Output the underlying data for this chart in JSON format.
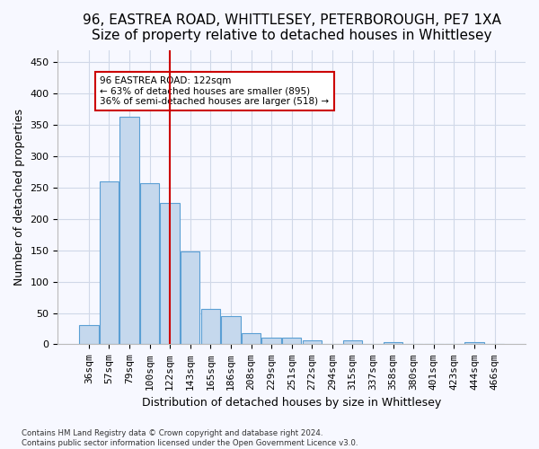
{
  "title": "96, EASTREA ROAD, WHITTLESEY, PETERBOROUGH, PE7 1XA",
  "subtitle": "Size of property relative to detached houses in Whittlesey",
  "xlabel": "Distribution of detached houses by size in Whittlesey",
  "ylabel": "Number of detached properties",
  "bar_color": "#c5d8ed",
  "bar_edge_color": "#5a9fd4",
  "grid_color": "#d0d8e8",
  "bins": [
    "36sqm",
    "57sqm",
    "79sqm",
    "100sqm",
    "122sqm",
    "143sqm",
    "165sqm",
    "186sqm",
    "208sqm",
    "229sqm",
    "251sqm",
    "272sqm",
    "294sqm",
    "315sqm",
    "337sqm",
    "358sqm",
    "380sqm",
    "401sqm",
    "423sqm",
    "444sqm",
    "466sqm"
  ],
  "values": [
    31,
    260,
    363,
    257,
    225,
    148,
    57,
    45,
    18,
    11,
    11,
    7,
    0,
    6,
    0,
    4,
    0,
    0,
    0,
    4,
    0
  ],
  "ylim": [
    0,
    470
  ],
  "yticks": [
    0,
    50,
    100,
    150,
    200,
    250,
    300,
    350,
    400,
    450
  ],
  "property_line_x": 4,
  "annotation_text": "96 EASTREA ROAD: 122sqm\n← 63% of detached houses are smaller (895)\n36% of semi-detached houses are larger (518) →",
  "annotation_box_color": "#ffffff",
  "annotation_box_edge": "#cc0000",
  "vline_color": "#cc0000",
  "footer": "Contains HM Land Registry data © Crown copyright and database right 2024.\nContains public sector information licensed under the Open Government Licence v3.0.",
  "bg_color": "#f7f8ff",
  "title_fontsize": 11,
  "subtitle_fontsize": 10,
  "label_fontsize": 9,
  "tick_fontsize": 8
}
